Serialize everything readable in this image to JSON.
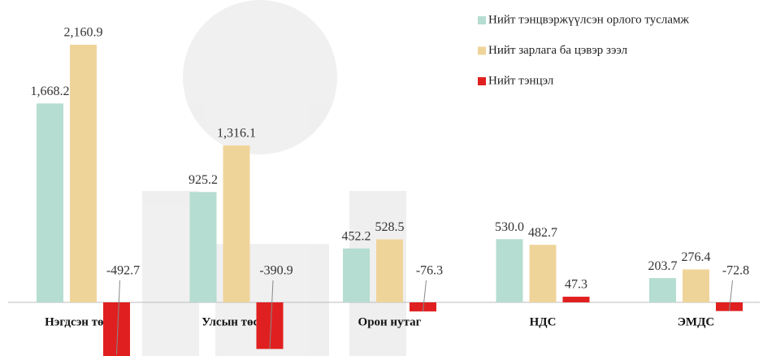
{
  "chart_data": {
    "type": "bar",
    "categories": [
      "Нэгдсэн төсөв",
      "Улсын төсөв",
      "Орон нутаг",
      "НДС",
      "ЭМДС"
    ],
    "series": [
      {
        "name": "Нийт тэнцвэржүүлсэн орлого тусламж",
        "color": "#b5ddd1",
        "values": [
          1668.2,
          925.2,
          452.2,
          530.0,
          203.7
        ],
        "value_labels": [
          "1,668.2",
          "925.2",
          "452.2",
          "530.0",
          "203.7"
        ]
      },
      {
        "name": "Нийт зарлага ба цэвэр зээл",
        "color": "#efd49a",
        "values": [
          2160.9,
          1316.1,
          528.5,
          482.7,
          276.4
        ],
        "value_labels": [
          "2,160.9",
          "1,316.1",
          "528.5",
          "482.7",
          "276.4"
        ]
      },
      {
        "name": "Нийт тэнцэл",
        "color": "#e02020",
        "values": [
          -492.7,
          -390.9,
          -76.3,
          47.3,
          -72.8
        ],
        "value_labels": [
          "-492.7",
          "-390.9",
          "-76.3",
          "47.3",
          "-72.8"
        ]
      }
    ],
    "legend": "top-right"
  }
}
